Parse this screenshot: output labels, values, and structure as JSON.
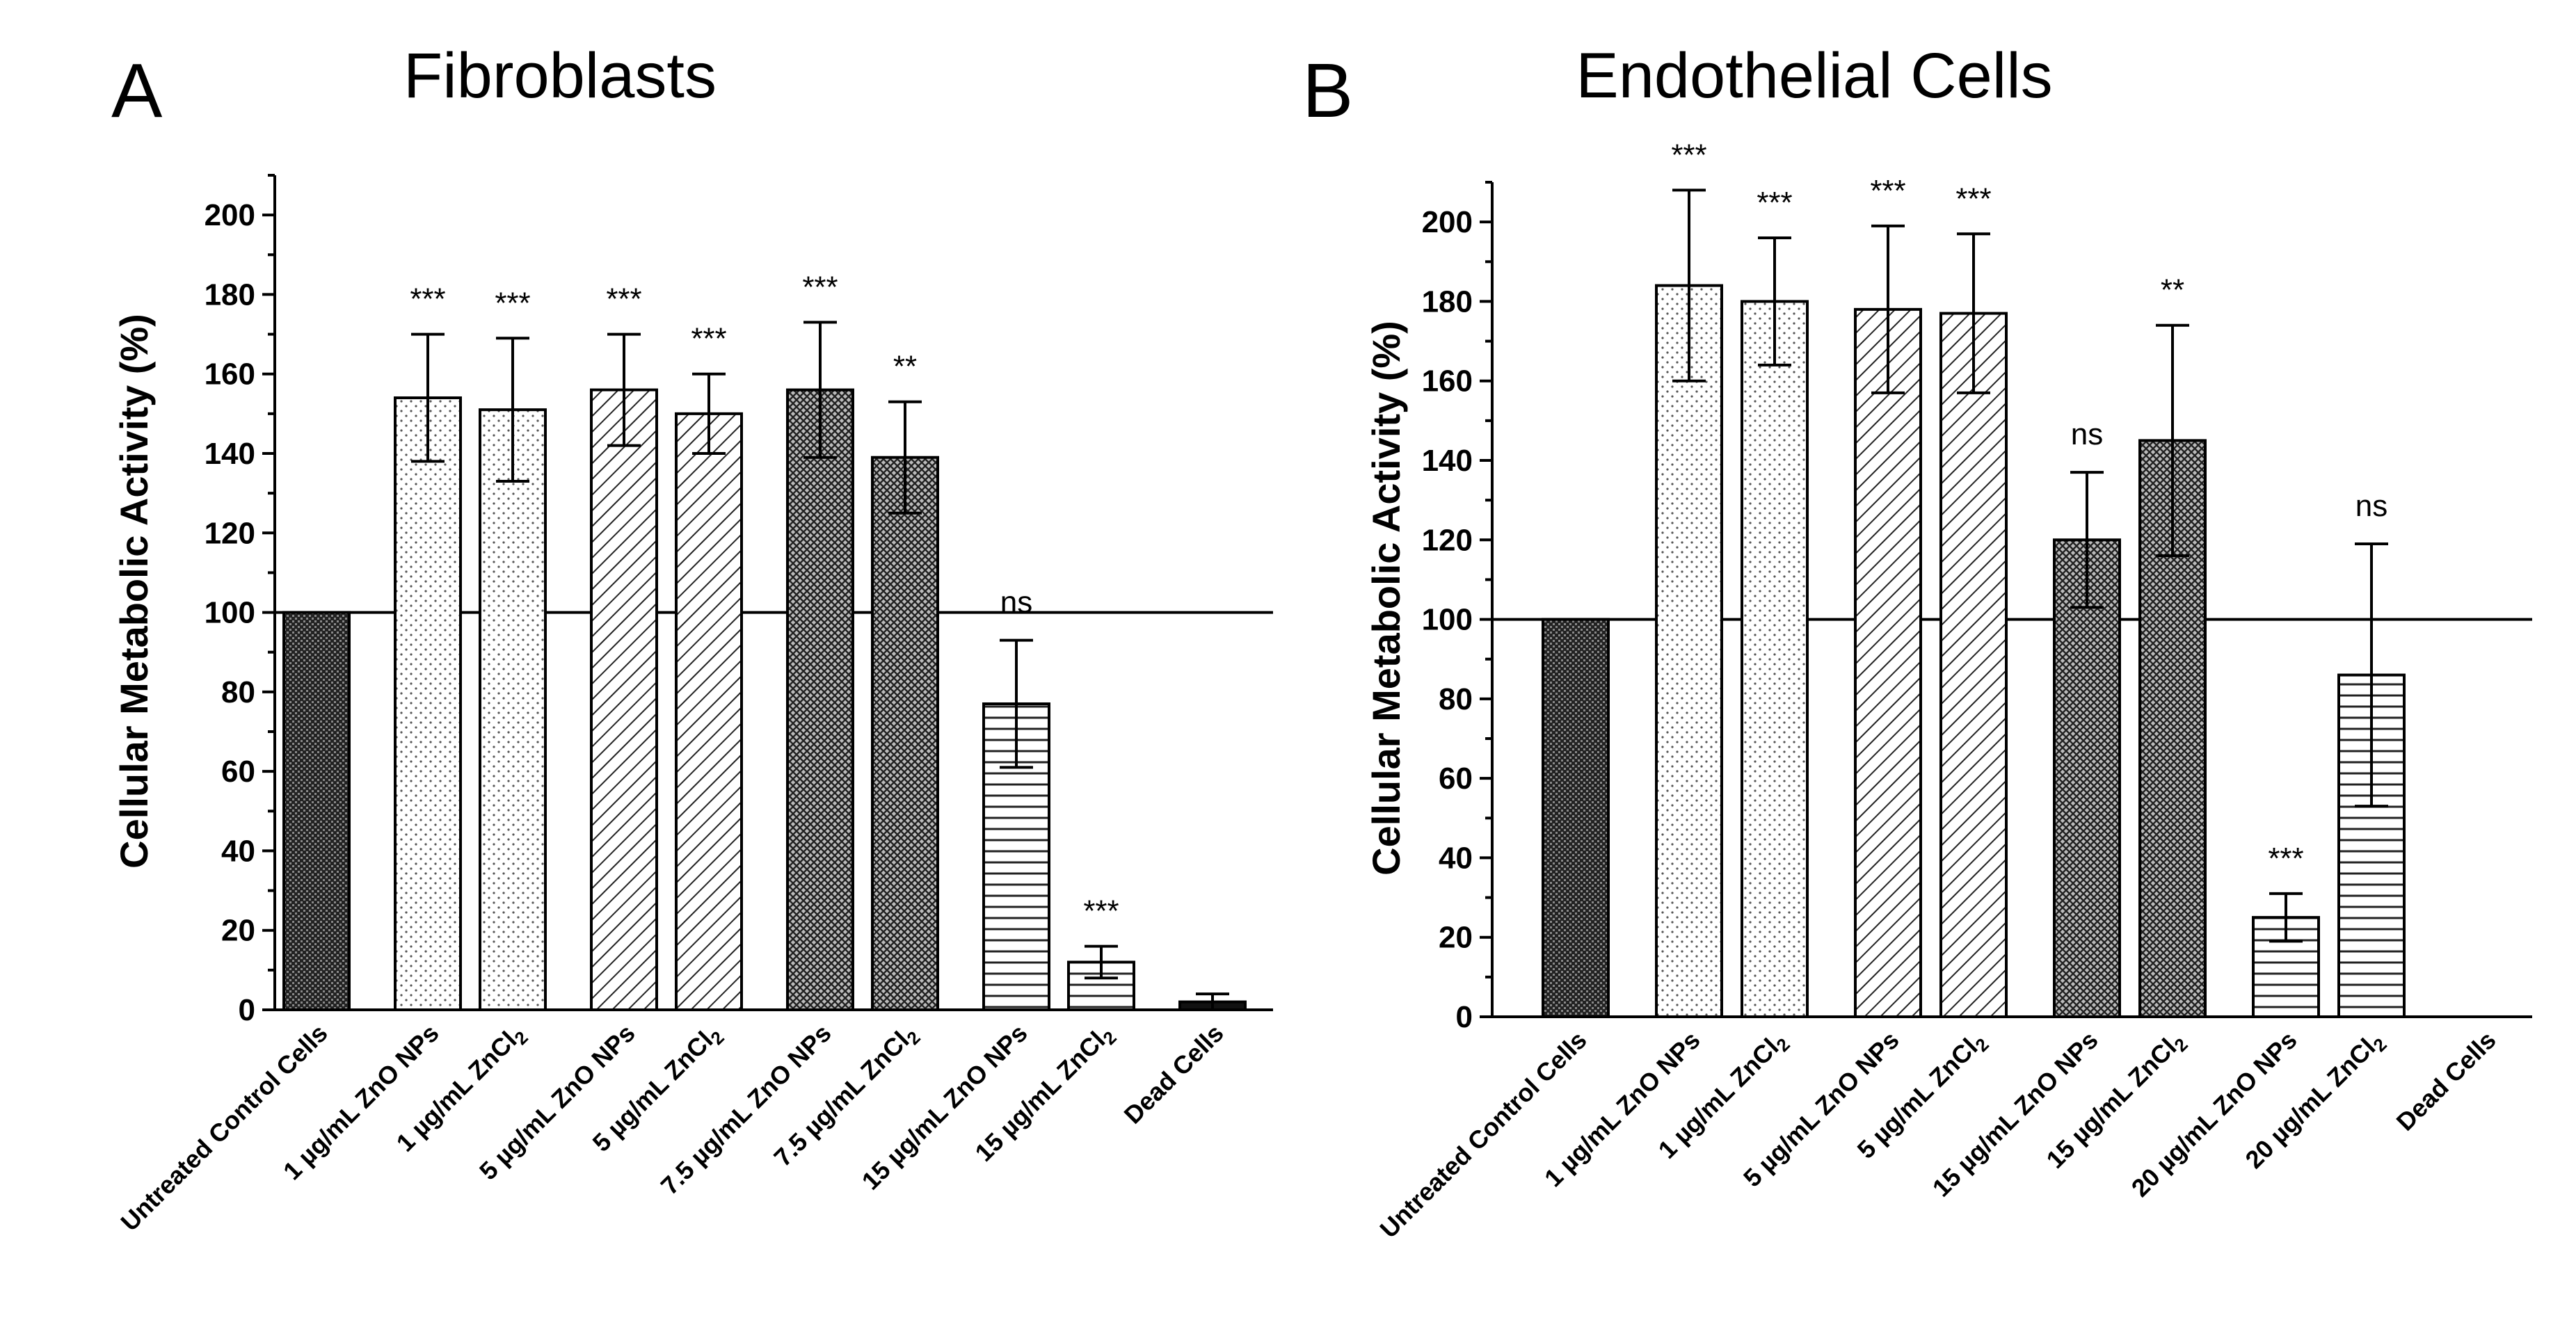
{
  "chart_data": [
    {
      "panel": "A",
      "type": "bar",
      "title": "Fibroblasts",
      "ylabel": "Cellular Metabolic Activity (%)",
      "xlabel": "",
      "ylim": [
        0,
        210
      ],
      "yticks": [
        0,
        20,
        40,
        60,
        80,
        100,
        120,
        140,
        160,
        180,
        200
      ],
      "reference_line": 100,
      "categories": [
        "Untreated Control Cells",
        "1 µg/mL ZnO NPs",
        "1 µg/mL  ZnCl2",
        "5 µg/mL  ZnO NPs",
        "5 µg/mL  ZnCl2",
        "7.5 µg/mL  ZnO NPs",
        "7.5 µg/mL  ZnCl2",
        "15 µg/mL  ZnO NPs",
        "15 µg/mL  ZnCl2",
        "Dead Cells"
      ],
      "values": [
        100,
        154,
        151,
        156,
        150,
        156,
        139,
        77,
        12,
        2
      ],
      "errors": [
        0,
        16,
        18,
        14,
        10,
        17,
        14,
        16,
        4,
        2
      ],
      "significance": [
        "",
        "***",
        "***",
        "***",
        "***",
        "***",
        "**",
        "ns",
        "***",
        ""
      ],
      "patterns": [
        "dense",
        "dots-sparse",
        "dots-sparse",
        "diag",
        "diag",
        "cross",
        "cross",
        "horiz",
        "horiz",
        "solid"
      ]
    },
    {
      "panel": "B",
      "type": "bar",
      "title": "Endothelial Cells",
      "ylabel": "Cellular Metabolic Activity (%)",
      "xlabel": "",
      "ylim": [
        0,
        210
      ],
      "yticks": [
        0,
        20,
        40,
        60,
        80,
        100,
        120,
        140,
        160,
        180,
        200
      ],
      "reference_line": 100,
      "categories": [
        "Untreated Control Cells",
        "1 µg/mL ZnO NPs",
        "1 µg/mL  ZnCl2",
        "5 µg/mL  ZnO NPs",
        "5 µg/mL  ZnCl2",
        "15 µg/mL  ZnO NPs",
        "15 µg/mL  ZnCl2",
        "20 µg/mL  ZnO NPs",
        "20 µg/mL  ZnCl2",
        "Dead Cells"
      ],
      "values": [
        100,
        184,
        180,
        178,
        177,
        120,
        145,
        25,
        86,
        0
      ],
      "errors": [
        0,
        24,
        16,
        21,
        20,
        17,
        29,
        6,
        33,
        0
      ],
      "significance": [
        "",
        "***",
        "***",
        "***",
        "***",
        "ns",
        "**",
        "***",
        "ns",
        ""
      ],
      "patterns": [
        "dense",
        "dots-sparse",
        "dots-sparse",
        "diag",
        "diag",
        "cross",
        "cross",
        "horiz",
        "horiz",
        "solid"
      ]
    }
  ]
}
